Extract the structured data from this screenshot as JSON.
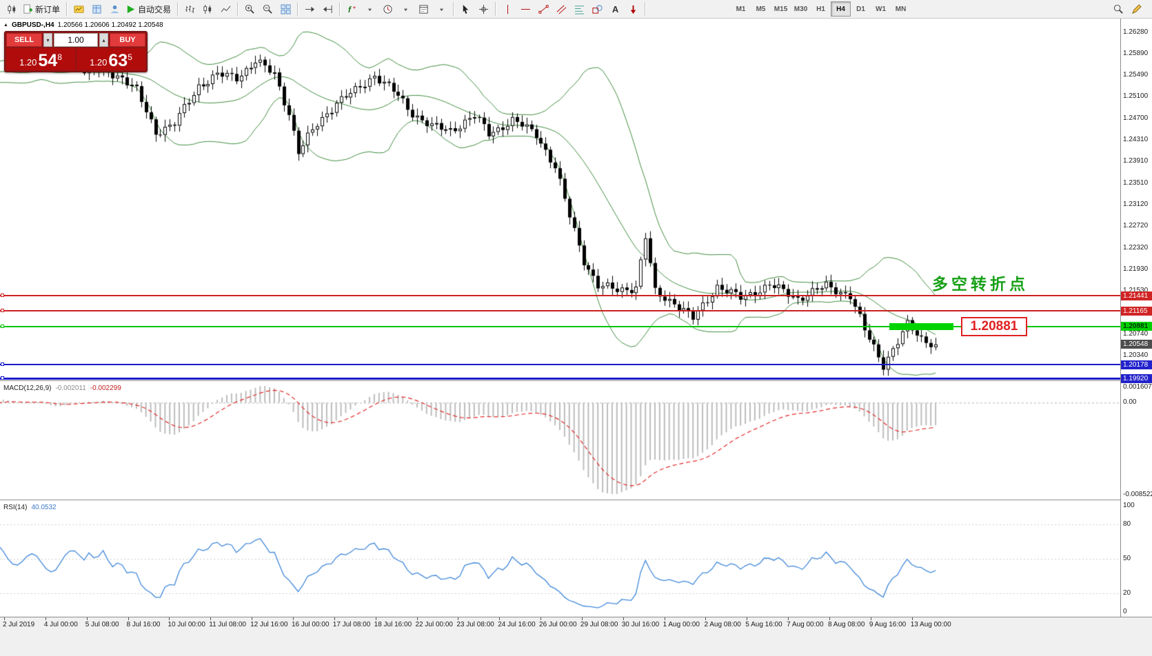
{
  "toolbar": {
    "buttons_left": [
      {
        "name": "chart-window-icon",
        "icon": "candles"
      },
      {
        "name": "new-order-button",
        "icon": "new-order",
        "label": "新订单"
      },
      {
        "sep": true
      },
      {
        "name": "market-watch-icon",
        "icon": "market"
      },
      {
        "name": "data-window-icon",
        "icon": "data"
      },
      {
        "name": "navigator-icon",
        "icon": "navigator"
      },
      {
        "name": "autotrading-button",
        "icon": "play",
        "label": "自动交易"
      },
      {
        "sep": true
      },
      {
        "name": "bar-chart-icon",
        "icon": "bars"
      },
      {
        "name": "candlestick-chart-icon",
        "icon": "candles"
      },
      {
        "name": "line-chart-icon",
        "icon": "line"
      },
      {
        "sep": true
      },
      {
        "name": "zoom-in-icon",
        "icon": "zoom-in"
      },
      {
        "name": "zoom-out-icon",
        "icon": "zoom-out"
      },
      {
        "name": "tile-windows-icon",
        "icon": "tile"
      },
      {
        "sep": true
      },
      {
        "name": "auto-scroll-icon",
        "icon": "autoscroll"
      },
      {
        "name": "chart-shift-icon",
        "icon": "shift"
      },
      {
        "sep": true
      },
      {
        "name": "indicators-icon",
        "icon": "func"
      },
      {
        "name": "indicators-dropdown-icon",
        "icon": "caret"
      },
      {
        "name": "periods-icon",
        "icon": "clock"
      },
      {
        "name": "periods-dropdown-icon",
        "icon": "caret"
      },
      {
        "name": "templates-icon",
        "icon": "template"
      },
      {
        "name": "templates-dropdown-icon",
        "icon": "caret"
      },
      {
        "sep": true
      },
      {
        "name": "cursor-icon",
        "icon": "cursor"
      },
      {
        "name": "crosshair-icon",
        "icon": "crosshair"
      },
      {
        "sep": true
      },
      {
        "name": "vertical-line-icon",
        "icon": "vline"
      },
      {
        "name": "horizontal-line-icon",
        "icon": "hline"
      },
      {
        "name": "trendline-icon",
        "icon": "tline"
      },
      {
        "name": "equidistant-channel-icon",
        "icon": "channel"
      },
      {
        "name": "fibonacci-icon",
        "icon": "fibo"
      },
      {
        "name": "shapes-icon",
        "icon": "shapes"
      },
      {
        "name": "text-label-icon",
        "icon": "text"
      },
      {
        "name": "arrows-icon",
        "icon": "arrow-tool"
      },
      {
        "sep": true
      }
    ],
    "timeframes": [
      {
        "label": "M1"
      },
      {
        "label": "M5"
      },
      {
        "label": "M15"
      },
      {
        "label": "M30"
      },
      {
        "label": "H1"
      },
      {
        "label": "H4",
        "active": true
      },
      {
        "label": "D1"
      },
      {
        "label": "W1"
      },
      {
        "label": "MN"
      }
    ],
    "buttons_right": [
      {
        "name": "search-icon",
        "icon": "magnifier"
      },
      {
        "name": "draw-icon",
        "icon": "pencil"
      }
    ]
  },
  "chart": {
    "symbol_title": "GBPUSD-,H4",
    "ohlc": "1.20566 1.20606 1.20492 1.20548",
    "annotation": "多空转折点",
    "callout": "1.20881"
  },
  "trade_panel": {
    "sell_label": "SELL",
    "buy_label": "BUY",
    "volume": "1.00",
    "sell_price": {
      "prefix": "1.20",
      "big": "54",
      "sup": "8"
    },
    "buy_price": {
      "prefix": "1.20",
      "big": "63",
      "sup": "5"
    }
  },
  "price_axis": {
    "regular": [
      "1.26280",
      "1.25890",
      "1.25490",
      "1.25100",
      "1.24700",
      "1.24310",
      "1.23910",
      "1.23510",
      "1.23120",
      "1.22720",
      "1.22320",
      "1.21930",
      "1.21530",
      "1.20740",
      "1.20340"
    ],
    "tags": [
      {
        "label": "1.21441",
        "type": "red"
      },
      {
        "label": "1.21165",
        "type": "red"
      },
      {
        "label": "1.20881",
        "type": "green"
      },
      {
        "label": "1.20548",
        "type": "current"
      },
      {
        "label": "1.20178",
        "type": "blue"
      },
      {
        "label": "1.19920",
        "type": "blue"
      }
    ]
  },
  "macd_panel": {
    "name": "MACD(12,26,9)",
    "value_main": "-0.002011",
    "value_signal": "-0.002299",
    "scale_top": "0.001607",
    "scale_zero": "0.00",
    "scale_bottom": "-0.008522"
  },
  "rsi_panel": {
    "name": "RSI(14)",
    "value": "40.0532",
    "scale_top": "100",
    "scale_bottom": "0",
    "levels": [
      80,
      50,
      20
    ]
  },
  "chart_data": {
    "type": "candlestick",
    "symbol": "GBPUSD",
    "period": "H4",
    "visible_range": {
      "price_top": 1.2628,
      "price_bottom": 1.1992
    },
    "ohlc_display": {
      "open": 1.20566,
      "high": 1.20606,
      "low": 1.20492,
      "close": 1.20548
    },
    "candle_count": 180,
    "price_waypoints": [
      [
        0,
        1.2553
      ],
      [
        4,
        1.256
      ],
      [
        8,
        1.2545
      ],
      [
        11,
        1.252
      ],
      [
        15,
        1.2445
      ],
      [
        19,
        1.246
      ],
      [
        24,
        1.253
      ],
      [
        28,
        1.255
      ],
      [
        32,
        1.2545
      ],
      [
        36,
        1.2576
      ],
      [
        40,
        1.255
      ],
      [
        43,
        1.248
      ],
      [
        45,
        1.2408
      ],
      [
        49,
        1.246
      ],
      [
        53,
        1.25
      ],
      [
        57,
        1.252
      ],
      [
        61,
        1.255
      ],
      [
        65,
        1.252
      ],
      [
        69,
        1.248
      ],
      [
        73,
        1.2455
      ],
      [
        77,
        1.2448
      ],
      [
        82,
        1.2475
      ],
      [
        85,
        1.2442
      ],
      [
        90,
        1.2466
      ],
      [
        95,
        1.2442
      ],
      [
        99,
        1.238
      ],
      [
        102,
        1.229
      ],
      [
        105,
        1.221
      ],
      [
        108,
        1.2162
      ],
      [
        112,
        1.2155
      ],
      [
        116,
        1.216
      ],
      [
        118,
        1.2252
      ],
      [
        120,
        1.215
      ],
      [
        124,
        1.2132
      ],
      [
        128,
        1.2102
      ],
      [
        133,
        1.2162
      ],
      [
        138,
        1.214
      ],
      [
        144,
        1.2164
      ],
      [
        150,
        1.214
      ],
      [
        156,
        1.2162
      ],
      [
        161,
        1.2145
      ],
      [
        164,
        1.208
      ],
      [
        168,
        1.2018
      ],
      [
        171,
        1.206
      ],
      [
        173,
        1.209
      ],
      [
        176,
        1.2066
      ],
      [
        179,
        1.20548
      ]
    ],
    "bollinger": {
      "period": 20,
      "deviation": 2
    },
    "macd": {
      "fast": 12,
      "slow": 26,
      "signal": 9,
      "current_main": -0.002011,
      "current_signal": -0.002299,
      "scale_max": 0.001607,
      "scale_min": -0.008522
    },
    "rsi": {
      "period": 14,
      "current": 40.0532,
      "levels": [
        80,
        50,
        20
      ]
    },
    "horizontal_levels": [
      {
        "price": 1.21441,
        "color": "#cc1f1f",
        "width": 2
      },
      {
        "price": 1.21165,
        "color": "#cc1f1f",
        "width": 2
      },
      {
        "price": 1.20881,
        "color": "#00c400",
        "width": 2,
        "highlight_segment": true
      },
      {
        "price": 1.20178,
        "color": "#1a1ac8",
        "width": 2
      },
      {
        "price": 1.1992,
        "color": "#1a1ac8",
        "width": 3
      }
    ],
    "x_labels": [
      "2 Jul 2019",
      "4 Jul 00:00",
      "5 Jul 08:00",
      "8 Jul 16:00",
      "10 Jul 00:00",
      "11 Jul 08:00",
      "12 Jul 16:00",
      "16 Jul 00:00",
      "17 Jul 08:00",
      "18 Jul 16:00",
      "22 Jul 00:00",
      "23 Jul 08:00",
      "24 Jul 16:00",
      "26 Jul 00:00",
      "29 Jul 08:00",
      "30 Jul 16:00",
      "1 Aug 00:00",
      "2 Aug 08:00",
      "5 Aug 16:00",
      "7 Aug 00:00",
      "8 Aug 08:00",
      "9 Aug 16:00",
      "13 Aug 00:00"
    ]
  }
}
